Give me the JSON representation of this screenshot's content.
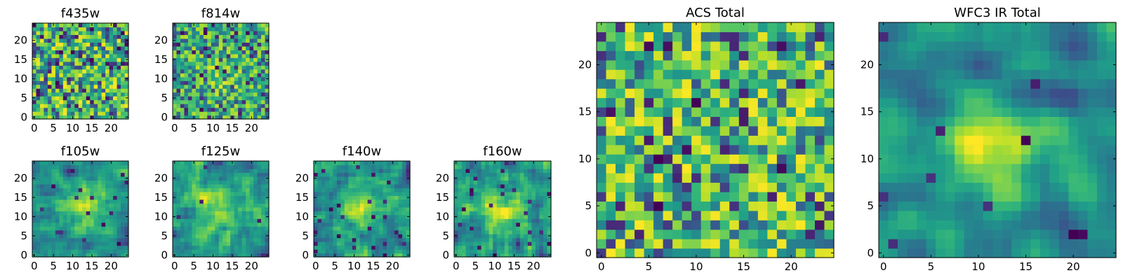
{
  "chart_data": [
    {
      "type": "heatmap",
      "title": "f435w",
      "size": 25,
      "seed": 11,
      "smooth": 0,
      "noise_pow": 0.55,
      "low_prob": 0.06,
      "xticks": [
        0,
        5,
        10,
        15,
        20
      ],
      "yticks": [
        0,
        5,
        10,
        15,
        20
      ],
      "colormap": "viridis"
    },
    {
      "type": "heatmap",
      "title": "f814w",
      "size": 25,
      "seed": 23,
      "smooth": 0,
      "noise_pow": 0.55,
      "low_prob": 0.05,
      "blob": {
        "cx": 13,
        "cy": 11,
        "sigma": 3,
        "amp": 0.15
      },
      "xticks": [
        0,
        5,
        10,
        15,
        20
      ],
      "yticks": [
        0,
        5,
        10,
        15,
        20
      ],
      "colormap": "viridis"
    },
    {
      "type": "heatmap",
      "title": "f105w",
      "size": 25,
      "seed": 37,
      "smooth": 1,
      "noise_pow": 0.8,
      "low_prob": 0.02,
      "blob": {
        "cx": 13,
        "cy": 12,
        "sigma": 4,
        "amp": 0.35
      },
      "xticks": [
        0,
        5,
        10,
        15,
        20
      ],
      "yticks": [
        0,
        5,
        10,
        15,
        20
      ],
      "colormap": "viridis"
    },
    {
      "type": "heatmap",
      "title": "f125w",
      "size": 25,
      "seed": 41,
      "smooth": 1,
      "noise_pow": 0.8,
      "low_prob": 0.01,
      "blob": {
        "cx": 12,
        "cy": 12,
        "sigma": 5,
        "amp": 0.3
      },
      "xticks": [
        0,
        5,
        10,
        15,
        20
      ],
      "yticks": [
        0,
        5,
        10,
        15,
        20
      ],
      "colormap": "viridis"
    },
    {
      "type": "heatmap",
      "title": "f140w",
      "size": 25,
      "seed": 53,
      "smooth": 1,
      "noise_pow": 0.8,
      "low_prob": 0.03,
      "blob": {
        "cx": 12,
        "cy": 12,
        "sigma": 4,
        "amp": 0.3
      },
      "xticks": [
        0,
        5,
        10,
        15,
        20
      ],
      "yticks": [
        0,
        5,
        10,
        15,
        20
      ],
      "colormap": "viridis"
    },
    {
      "type": "heatmap",
      "title": "f160w",
      "size": 25,
      "seed": 67,
      "smooth": 1,
      "noise_pow": 0.8,
      "low_prob": 0.03,
      "blob": {
        "cx": 12,
        "cy": 12,
        "sigma": 4,
        "amp": 0.3
      },
      "xticks": [
        0,
        5,
        10,
        15,
        20
      ],
      "yticks": [
        0,
        5,
        10,
        15,
        20
      ],
      "colormap": "viridis"
    },
    {
      "type": "heatmap",
      "title": "ACS Total",
      "size": 25,
      "seed": 79,
      "smooth": 0,
      "noise_pow": 0.5,
      "low_prob": 0.04,
      "xticks": [
        0,
        5,
        10,
        15,
        20
      ],
      "yticks": [
        0,
        5,
        10,
        15,
        20
      ],
      "colormap": "viridis"
    },
    {
      "type": "heatmap",
      "title": "WFC3 IR Total",
      "size": 25,
      "seed": 97,
      "smooth": 2,
      "noise_pow": 0.9,
      "low_prob": 0.015,
      "blob": {
        "cx": 12,
        "cy": 12,
        "sigma": 4,
        "amp": 0.45
      },
      "xticks": [
        0,
        5,
        10,
        15,
        20
      ],
      "yticks": [
        0,
        5,
        10,
        15,
        20
      ],
      "colormap": "viridis"
    }
  ]
}
